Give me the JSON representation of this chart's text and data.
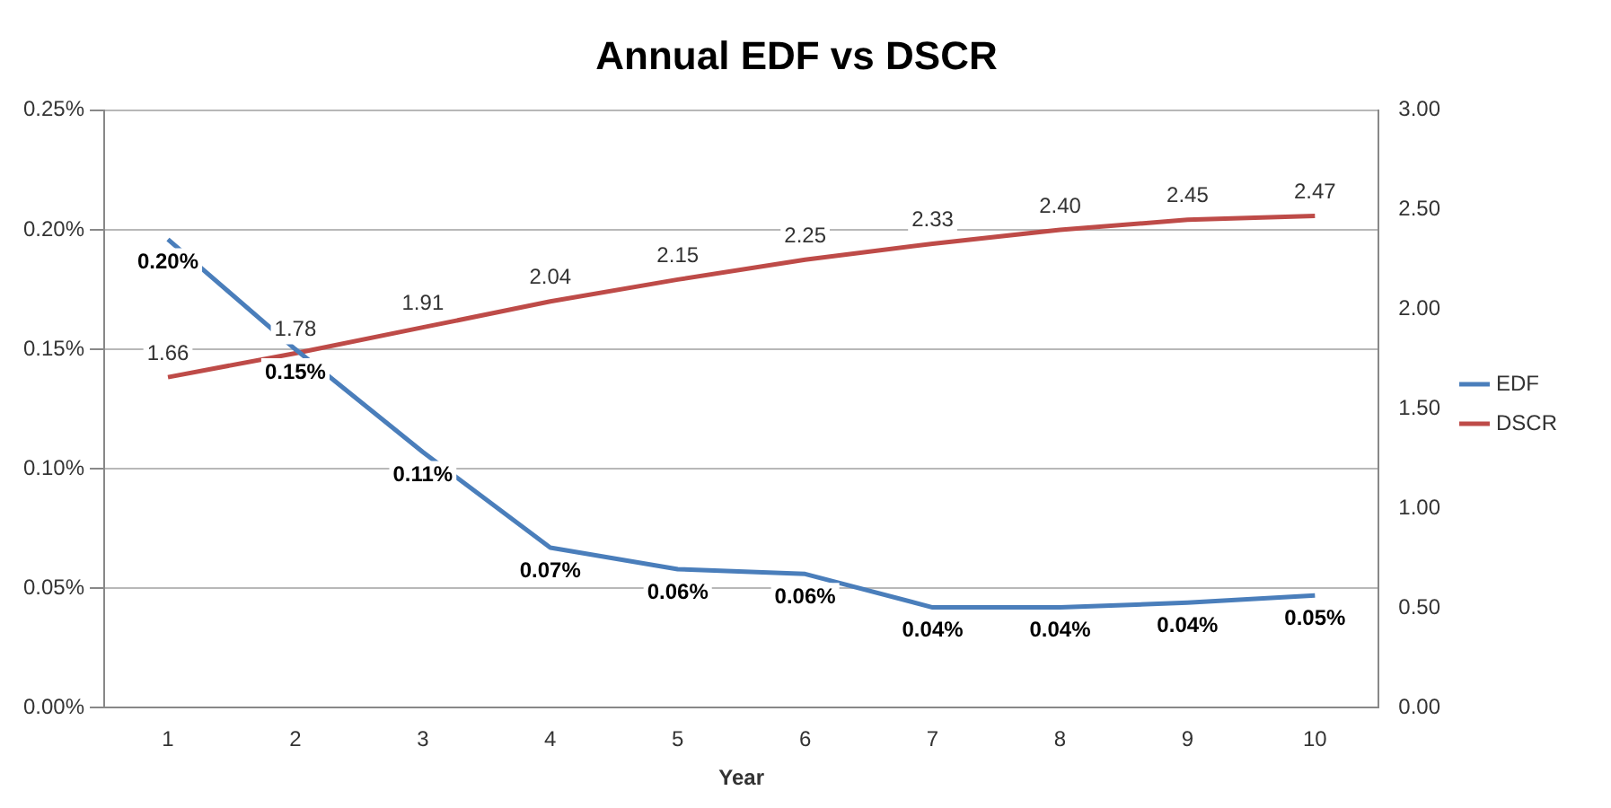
{
  "chart_data": {
    "type": "line",
    "title": "Annual EDF vs DSCR",
    "xlabel": "Year",
    "categories": [
      "1",
      "2",
      "3",
      "4",
      "5",
      "6",
      "7",
      "8",
      "9",
      "10"
    ],
    "series": [
      {
        "name": "EDF",
        "color": "#4a7ebb",
        "values": [
          0.196,
          0.15,
          0.107,
          0.067,
          0.058,
          0.056,
          0.042,
          0.042,
          0.044,
          0.047
        ],
        "value_labels": [
          "0.20%",
          "0.15%",
          "0.11%",
          "0.07%",
          "0.06%",
          "0.06%",
          "0.04%",
          "0.04%",
          "0.04%",
          "0.05%"
        ]
      },
      {
        "name": "DSCR",
        "color": "#be4b48",
        "axis": "y2",
        "values": [
          1.66,
          1.78,
          1.91,
          2.04,
          2.15,
          2.25,
          2.33,
          2.4,
          2.45,
          2.47
        ],
        "value_labels": [
          "1.66",
          "1.78",
          "1.91",
          "2.04",
          "2.15",
          "2.25",
          "2.33",
          "2.40",
          "2.45",
          "2.47"
        ]
      }
    ],
    "ylim": [
      0,
      0.25
    ],
    "yticks": [
      {
        "value": 0,
        "label": "0.00%"
      },
      {
        "value": 0.05,
        "label": "0.05%"
      },
      {
        "value": 0.1,
        "label": "0.10%"
      },
      {
        "value": 0.15,
        "label": "0.15%"
      },
      {
        "value": 0.2,
        "label": "0.20%"
      },
      {
        "value": 0.25,
        "label": "0.25%"
      }
    ],
    "y2lim": [
      0,
      3
    ],
    "y2ticks": [
      {
        "value": 0,
        "label": "0.00"
      },
      {
        "value": 0.5,
        "label": "0.50"
      },
      {
        "value": 1,
        "label": "1.00"
      },
      {
        "value": 1.5,
        "label": "1.50"
      },
      {
        "value": 2,
        "label": "2.00"
      },
      {
        "value": 2.5,
        "label": "2.50"
      },
      {
        "value": 3,
        "label": "3.00"
      }
    ],
    "grid": "y",
    "legend": "right",
    "marker": "none",
    "line_style": "solid"
  }
}
